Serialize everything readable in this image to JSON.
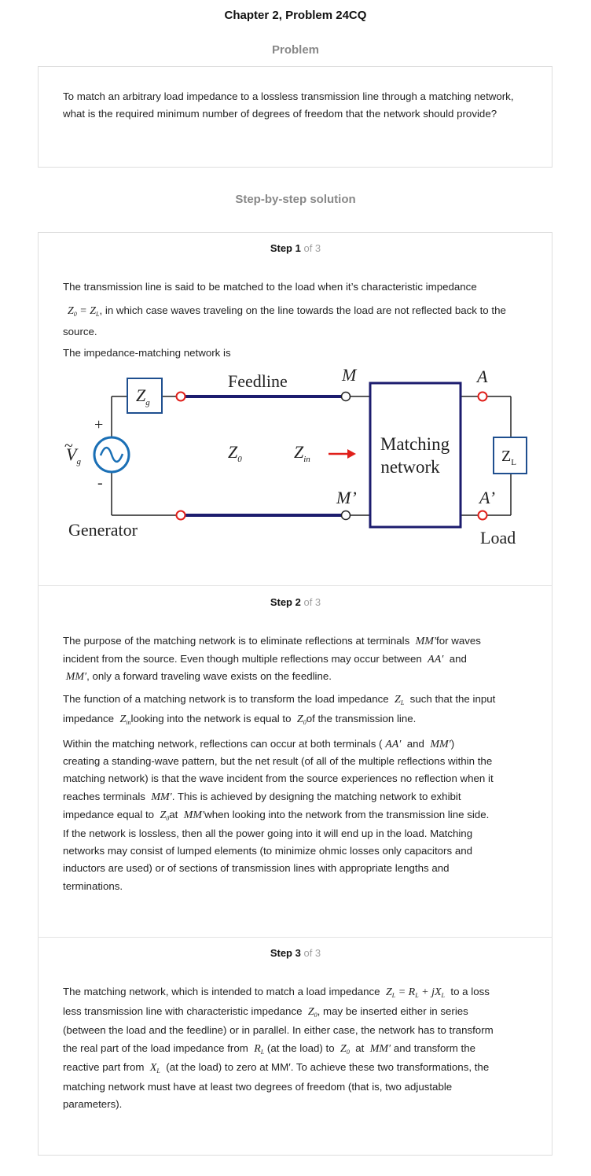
{
  "header": {
    "title": "Chapter 2, Problem 24CQ"
  },
  "problem": {
    "heading": "Problem",
    "text": "To match an arbitrary load impedance to a lossless transmission line through a matching network, what is the required minimum number of degrees of freedom that the network should provide?"
  },
  "solution_heading": "Step-by-step solution",
  "steps": [
    {
      "label": "Step 1",
      "of": "of 3",
      "p1_a": "The transmission line is said to be matched to the load when it’s characteristic impedance",
      "p1_math": "Z0 = ZL",
      "p1_b": ", in which case waves traveling on the line towards the load are not reflected back to the source.",
      "p2": "The impedance-matching network is",
      "diagram": {
        "feedline": "Feedline",
        "generator": "Generator",
        "load": "Load",
        "matching_line1": "Matching",
        "matching_line2": "network",
        "m": "M",
        "m_prime": "M’",
        "a": "A",
        "a_prime": "A’",
        "zg": "Zg",
        "z0": "Z0",
        "zin": "Zin",
        "zl": "ZL",
        "vg": "Vg",
        "plus": "+",
        "minus": "-"
      }
    },
    {
      "label": "Step 2",
      "of": "of 3"
    },
    {
      "label": "Step 3",
      "of": "of 3"
    }
  ],
  "step2": {
    "l1a": "The purpose of the matching network is to eliminate reflections at terminals",
    "l1m": "MM′",
    "l1b": "for waves",
    "l2a": "incident from the source. Even though multiple reflections may occur between",
    "l2m": "AA′",
    "l2b": "and",
    "l3m": "MM′",
    "l3b": ", only a forward traveling wave exists on the feedline.",
    "p2l1a": "The function of a matching network is to transform the load impedance",
    "p2l1m": "ZL",
    "p2l1b": "such that the input",
    "p2l2a": "impedance",
    "p2l2m": "Zin",
    "p2l2b": "looking into the network is equal to",
    "p2l2m2": "Z0",
    "p2l2c": "of the transmission line.",
    "p3l1a": "Within the matching network, reflections can occur at both terminals (",
    "p3l1m": "AA′",
    "p3l1b": "and",
    "p3l1m2": "MM′",
    "p3l1c": ")",
    "p3l2": "creating a standing-wave pattern, but the net result (of all of the multiple reflections within the",
    "p3l3": "matching network) is that the wave incident from the source experiences no reflection when it",
    "p3l4a": "reaches terminals",
    "p3l4m": "MM′",
    "p3l4b": ". This is achieved by designing the matching network to exhibit",
    "p3l5a": "impedance equal to",
    "p3l5m": "Z0",
    "p3l5b": "at",
    "p3l5m2": "MM′",
    "p3l5c": "when looking into the network from the transmission line side.",
    "p3l6": "If the network is lossless, then all the power going into it will end up in the load. Matching",
    "p3l7": "networks may consist of lumped elements (to minimize ohmic losses only capacitors and",
    "p3l8": "inductors are used) or of sections of transmission lines with appropriate lengths and",
    "p3l9": "terminations."
  },
  "step3": {
    "l1a": "The matching network, which is intended to match a load impedance",
    "l1m": "ZL = RL + jXL",
    "l1b": "to a loss",
    "l2a": "less transmission line with characteristic impedance",
    "l2m": "Z0",
    "l2b": ", may be inserted either in series",
    "l3": "(between the load and the feedline) or in parallel. In either case, the network has to transform",
    "l4a": "the real part of the load impedance from",
    "l4m": "RL",
    "l4b": "(at the load) to",
    "l4m2": "Z0",
    "l4c": "at",
    "l4m3": "MM′",
    "l4d": "and transform the",
    "l5a": "reactive part from",
    "l5m": "XL",
    "l5b": "(at the load) to zero at MM′. To achieve these two transformations, the",
    "l6": "matching network must have at least two degrees of freedom (that is, two adjustable",
    "l7": "parameters)."
  },
  "colors": {
    "line": "#1c1c6e",
    "arrow": "#e0201b",
    "terminal": "#e0201b",
    "source": "#1a6fb5",
    "box": "#1f4f8f"
  }
}
